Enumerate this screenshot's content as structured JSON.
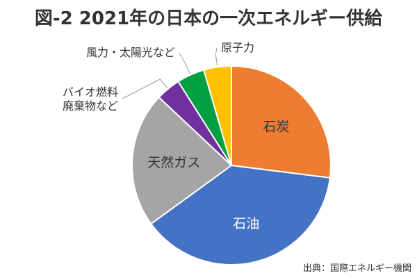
{
  "chart_data": {
    "type": "pie",
    "title": "図-2 2021年の日本の一次エネルギー供給",
    "source": "出典：国際エネルギー機関",
    "slices": [
      {
        "label": "石炭",
        "value": 27.0,
        "color": "#ED7D31",
        "label_position": "inside",
        "label_color": "#333333"
      },
      {
        "label": "石油",
        "value": 38.0,
        "color": "#4472C4",
        "label_position": "inside",
        "label_color": "#ffffff"
      },
      {
        "label": "天然ガス",
        "value": 22.0,
        "color": "#A5A5A5",
        "label_position": "inside",
        "label_color": "#333333"
      },
      {
        "label": "バイオ燃料\n廃棄物など",
        "value": 4.0,
        "color": "#7030A0",
        "label_position": "outside",
        "label_color": "#333333"
      },
      {
        "label": "風力・太陽光など",
        "value": 4.5,
        "color": "#00A040",
        "label_position": "outside",
        "label_color": "#333333"
      },
      {
        "label": "原子力",
        "value": 4.5,
        "color": "#FFC000",
        "label_position": "outside",
        "label_color": "#333333"
      }
    ],
    "start_angle_deg": 0,
    "direction": "clockwise",
    "legend": "none",
    "slice_border_color": "#ffffff"
  }
}
